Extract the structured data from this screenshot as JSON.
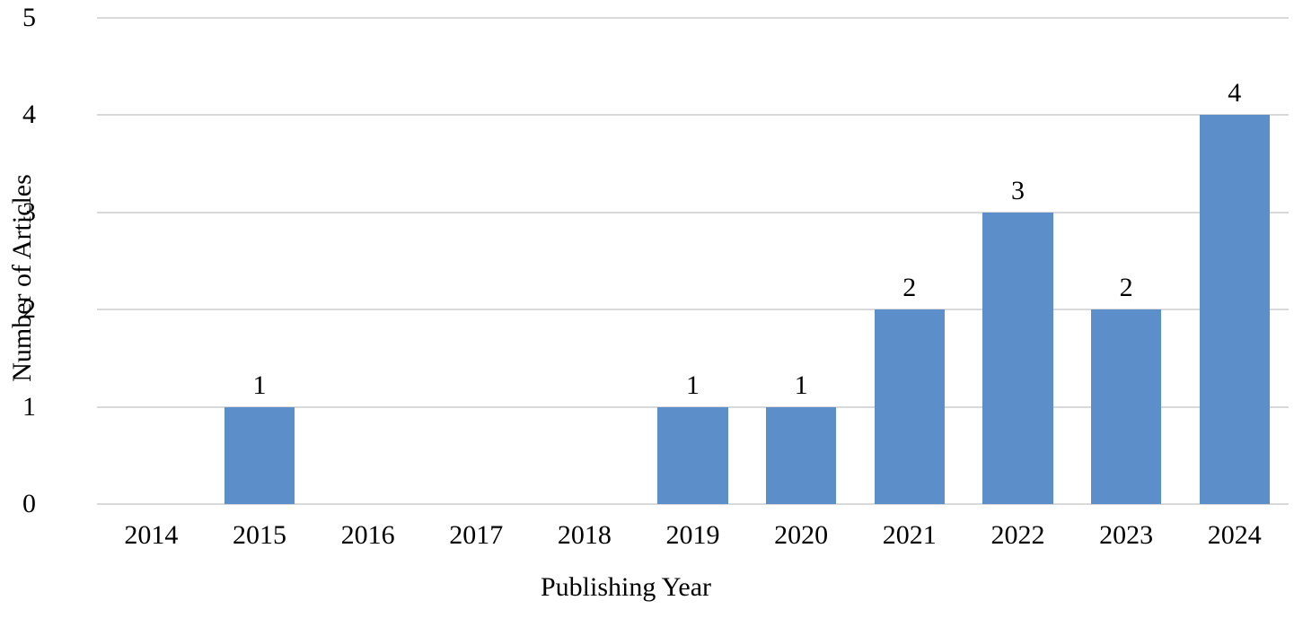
{
  "chart_data": {
    "type": "bar",
    "title": "",
    "xlabel": "Publishing Year",
    "ylabel": "Number of Articles",
    "categories": [
      "2014",
      "2015",
      "2016",
      "2017",
      "2018",
      "2019",
      "2020",
      "2021",
      "2022",
      "2023",
      "2024"
    ],
    "values": [
      0,
      1,
      0,
      0,
      0,
      1,
      1,
      2,
      3,
      2,
      4
    ],
    "ylim": [
      0,
      5
    ],
    "yticks": [
      0,
      1,
      2,
      3,
      4,
      5
    ],
    "grid": "horizontal",
    "legend": "none",
    "show_data_labels": true,
    "bar_color": "#5C8ECA",
    "gridline_color": "#D9D9D9",
    "text_color": "#000000",
    "background_color": "#FFFFFF"
  }
}
